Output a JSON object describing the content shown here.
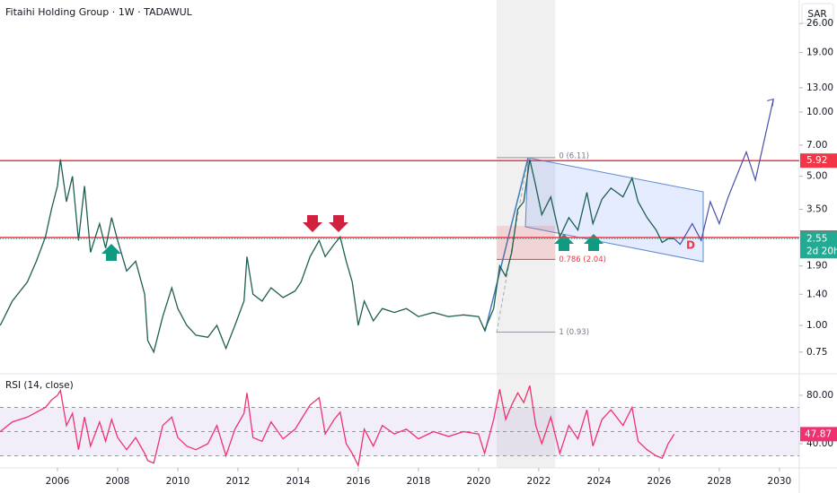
{
  "header": {
    "title": "Fitaihi Holding Group · 1W · TADAWUL",
    "currency": "SAR"
  },
  "chart_data": [
    {
      "type": "line",
      "log_scale": true,
      "color": "#1f5f52",
      "xlim": [
        2004.09,
        2030.66
      ],
      "ylim": [
        0.605,
        33.5
      ],
      "x": [
        2004.1,
        2004.5,
        2005.0,
        2005.3,
        2005.6,
        2005.8,
        2006.0,
        2006.1,
        2006.3,
        2006.5,
        2006.7,
        2006.9,
        2007.1,
        2007.4,
        2007.6,
        2007.8,
        2008.0,
        2008.3,
        2008.6,
        2008.9,
        2009.0,
        2009.2,
        2009.5,
        2009.8,
        2010.0,
        2010.3,
        2010.6,
        2011.0,
        2011.3,
        2011.6,
        2011.9,
        2012.2,
        2012.3,
        2012.5,
        2012.8,
        2013.1,
        2013.5,
        2013.9,
        2014.1,
        2014.4,
        2014.7,
        2014.9,
        2015.2,
        2015.4,
        2015.6,
        2015.8,
        2016.0,
        2016.2,
        2016.5,
        2016.8,
        2017.2,
        2017.6,
        2018.0,
        2018.5,
        2019.0,
        2019.5,
        2020.0,
        2020.2,
        2020.5,
        2020.7,
        2020.9,
        2021.1,
        2021.3,
        2021.5,
        2021.7,
        2021.9,
        2022.1,
        2022.4,
        2022.7,
        2023.0,
        2023.3,
        2023.6,
        2023.8,
        2024.1,
        2024.4,
        2024.8,
        2025.1,
        2025.3,
        2025.6,
        2025.9,
        2026.1,
        2026.3,
        2026.5
      ],
      "values": [
        1.0,
        1.3,
        1.6,
        2.0,
        2.6,
        3.5,
        4.5,
        6.0,
        3.8,
        5.0,
        2.5,
        4.5,
        2.2,
        3.0,
        2.3,
        3.2,
        2.5,
        1.8,
        2.0,
        1.4,
        0.85,
        0.75,
        1.1,
        1.5,
        1.2,
        1.0,
        0.9,
        0.88,
        1.0,
        0.78,
        1.0,
        1.3,
        2.1,
        1.4,
        1.3,
        1.5,
        1.35,
        1.45,
        1.6,
        2.1,
        2.5,
        2.1,
        2.4,
        2.6,
        2.0,
        1.6,
        1.0,
        1.3,
        1.05,
        1.2,
        1.15,
        1.2,
        1.1,
        1.15,
        1.1,
        1.12,
        1.1,
        0.95,
        1.2,
        1.9,
        1.7,
        2.2,
        3.5,
        3.8,
        6.0,
        4.5,
        3.3,
        4.0,
        2.6,
        3.2,
        2.8,
        4.2,
        3.0,
        3.9,
        4.4,
        4.0,
        4.9,
        3.8,
        3.2,
        2.8,
        2.45,
        2.55,
        2.55
      ],
      "projection": {
        "color": "#4a4fa8",
        "x": [
          2026.5,
          2026.7,
          2027.1,
          2027.4,
          2027.7,
          2028.0,
          2028.3,
          2028.9,
          2029.2,
          2029.8
        ],
        "values": [
          2.55,
          2.4,
          3.0,
          2.5,
          3.8,
          3.0,
          4.0,
          6.5,
          4.8,
          11.5
        ]
      },
      "yticks": [
        {
          "value": 0.75,
          "label": "0.75"
        },
        {
          "value": 1,
          "label": "1.00"
        },
        {
          "value": 1.4,
          "label": "1.40"
        },
        {
          "value": 1.9,
          "label": "1.90"
        },
        {
          "value": 3.5,
          "label": "3.50"
        },
        {
          "value": 5,
          "label": "5.00"
        },
        {
          "value": 7,
          "label": "7.00"
        },
        {
          "value": 10,
          "label": "10.00"
        },
        {
          "value": 13,
          "label": "13.00"
        },
        {
          "value": 19,
          "label": "19.00"
        },
        {
          "value": 26,
          "label": "26.00"
        }
      ],
      "levels": [
        {
          "value": 5.92,
          "color": "#f23645"
        },
        {
          "value": 2.58,
          "color": "#f23645"
        }
      ],
      "last_price": {
        "value": 2.55,
        "countdown": "2d 20h",
        "color": "#22ab94"
      },
      "fib": {
        "x": [
          2020.6,
          2022.55
        ],
        "zone": [
          2.04,
          2.93
        ],
        "levels": [
          {
            "value": 6.11,
            "label": "0 (6.11)"
          },
          {
            "value": 2.04,
            "label": "0.786 (2.04)"
          },
          {
            "value": 0.93,
            "label": "1 (0.93)"
          }
        ]
      },
      "annotations": [
        "D"
      ]
    },
    {
      "type": "line",
      "title": "RSI (14, close)",
      "color": "#f0316f",
      "xlim": [
        2004.09,
        2030.66
      ],
      "ylim": [
        20,
        97
      ],
      "x": [
        2004.1,
        2004.5,
        2005.0,
        2005.3,
        2005.6,
        2005.8,
        2006.0,
        2006.1,
        2006.3,
        2006.5,
        2006.7,
        2006.9,
        2007.1,
        2007.4,
        2007.6,
        2007.8,
        2008.0,
        2008.3,
        2008.6,
        2008.9,
        2009.0,
        2009.2,
        2009.5,
        2009.8,
        2010.0,
        2010.3,
        2010.6,
        2011.0,
        2011.3,
        2011.6,
        2011.9,
        2012.2,
        2012.3,
        2012.5,
        2012.8,
        2013.1,
        2013.5,
        2013.9,
        2014.1,
        2014.4,
        2014.7,
        2014.9,
        2015.2,
        2015.4,
        2015.6,
        2015.8,
        2016.0,
        2016.2,
        2016.5,
        2016.8,
        2017.2,
        2017.6,
        2018.0,
        2018.5,
        2019.0,
        2019.5,
        2020.0,
        2020.2,
        2020.5,
        2020.7,
        2020.9,
        2021.1,
        2021.3,
        2021.5,
        2021.7,
        2021.9,
        2022.1,
        2022.4,
        2022.7,
        2023.0,
        2023.3,
        2023.6,
        2023.8,
        2024.1,
        2024.4,
        2024.8,
        2025.1,
        2025.3,
        2025.6,
        2025.9,
        2026.1,
        2026.3,
        2026.5
      ],
      "values": [
        50,
        58,
        62,
        66,
        70,
        76,
        80,
        84,
        55,
        65,
        35,
        62,
        38,
        58,
        42,
        60,
        45,
        35,
        45,
        32,
        26,
        24,
        55,
        62,
        45,
        38,
        35,
        40,
        55,
        30,
        52,
        65,
        82,
        45,
        42,
        58,
        44,
        52,
        60,
        72,
        78,
        48,
        60,
        66,
        40,
        32,
        22,
        52,
        38,
        55,
        48,
        52,
        44,
        50,
        46,
        50,
        48,
        32,
        60,
        85,
        60,
        72,
        82,
        74,
        88,
        55,
        40,
        62,
        32,
        55,
        44,
        68,
        38,
        60,
        68,
        55,
        70,
        42,
        35,
        30,
        28,
        40,
        47.87
      ],
      "bands": [
        70,
        50,
        30
      ],
      "yticks": [
        {
          "value": 40,
          "label": "40.00"
        },
        {
          "value": 80,
          "label": "80.00"
        }
      ],
      "xticks": [
        2006,
        2008,
        2010,
        2012,
        2014,
        2016,
        2018,
        2020,
        2022,
        2024,
        2026,
        2028,
        2030
      ]
    }
  ]
}
